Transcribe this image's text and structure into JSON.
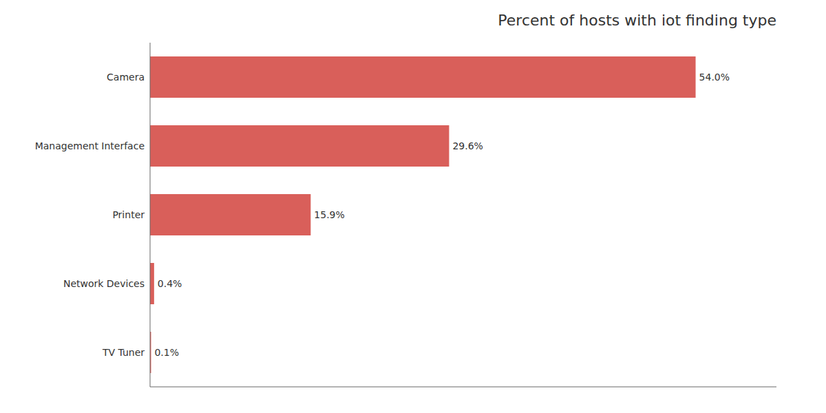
{
  "chart_data": {
    "type": "bar",
    "title": "Percent of hosts with iot finding type",
    "orientation": "horizontal",
    "categories": [
      "TV Tuner",
      "Network Devices",
      "Printer",
      "Management Interface",
      "Camera"
    ],
    "values": [
      0.1,
      0.4,
      15.9,
      29.6,
      54.0
    ],
    "value_labels": [
      "0.1%",
      "0.4%",
      "15.9%",
      "29.6%",
      "54.0%"
    ],
    "data_labels": true,
    "color": "#d95f5a",
    "xlim": [
      0,
      62
    ],
    "tick_labels": "y",
    "grid": false
  }
}
